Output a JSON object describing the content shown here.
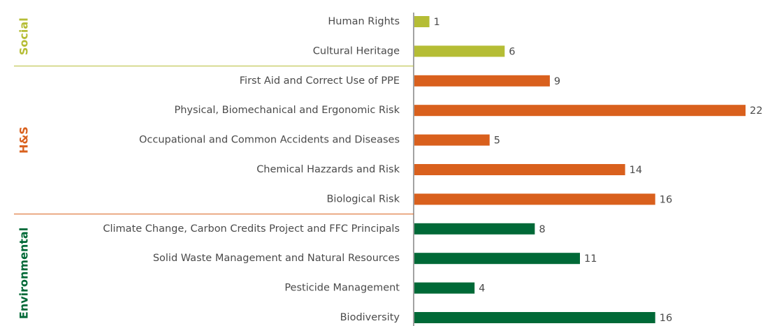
{
  "chart_data": {
    "type": "bar",
    "orientation": "horizontal",
    "groups": [
      {
        "name": "Social",
        "color": "#b5bd35",
        "categories": [
          "Human Rights",
          "Cultural Heritage"
        ],
        "values": [
          1,
          6
        ]
      },
      {
        "name": "H&S",
        "color": "#d9601d",
        "categories": [
          "First Aid and Correct Use of PPE",
          "Physical, Biomechanical and Ergonomic Risk",
          "Occupational and Common Accidents and Diseases",
          "Chemical Hazzards and Risk",
          "Biological Risk"
        ],
        "values": [
          9,
          22,
          5,
          14,
          16
        ]
      },
      {
        "name": "Environmental",
        "color": "#006937",
        "categories": [
          "Climate Change, Carbon Credits Project and FFC Principals",
          "Solid Waste Management and Natural Resources",
          "Pesticide Management",
          "Biodiversity"
        ],
        "values": [
          8,
          11,
          4,
          16
        ]
      }
    ]
  }
}
